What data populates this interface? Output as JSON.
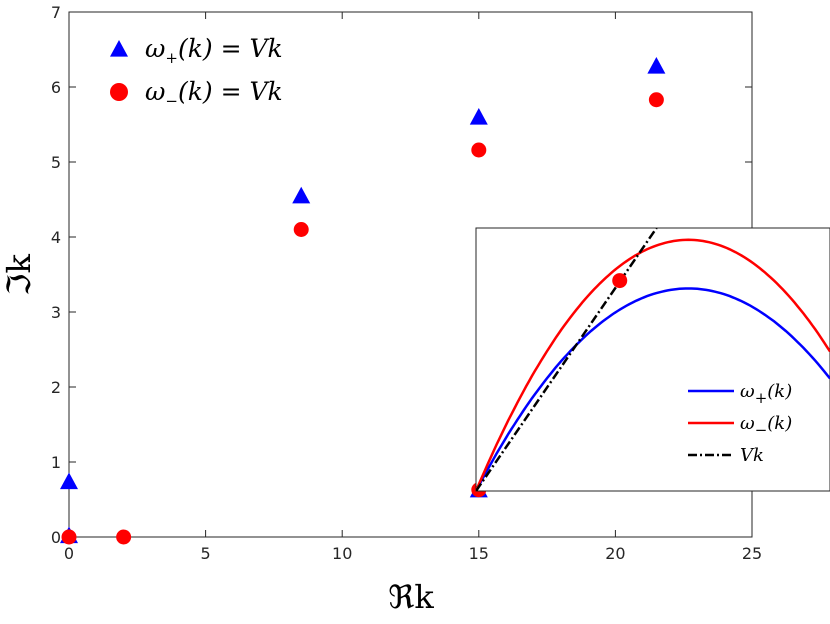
{
  "chart_data": {
    "type": "scatter",
    "xlabel": "ℜk",
    "ylabel": "ℑk",
    "xlim": [
      0,
      25
    ],
    "ylim": [
      0,
      7
    ],
    "xticks": [
      "0",
      "5",
      "10",
      "15",
      "20",
      "25"
    ],
    "yticks": [
      "0",
      "1",
      "2",
      "3",
      "4",
      "5",
      "6",
      "7"
    ],
    "legend_position": "top-left",
    "series": [
      {
        "name": "ω+(k) = Vk",
        "legend": {
          "sym": "ω",
          "sub": "+",
          "rest": "(k) = Vk"
        },
        "marker": "triangle",
        "color": "#0000ff",
        "points": [
          [
            0,
            0.74
          ],
          [
            0,
            0.02
          ],
          [
            8.5,
            4.55
          ],
          [
            15,
            5.6
          ],
          [
            21.5,
            6.28
          ],
          [
            15,
            0.63
          ]
        ]
      },
      {
        "name": "ω−(k) = Vk",
        "legend": {
          "sym": "ω",
          "sub": "−",
          "rest": "(k) = Vk"
        },
        "marker": "circle",
        "color": "#ff0000",
        "points": [
          [
            0,
            0.0
          ],
          [
            2,
            0.0
          ],
          [
            8.5,
            4.1
          ],
          [
            15,
            5.16
          ],
          [
            21.5,
            5.83
          ],
          [
            15,
            0.63
          ]
        ]
      }
    ],
    "inset": {
      "type": "line",
      "legend_position": "bottom-right",
      "series": [
        {
          "name": "ω+(k)",
          "legend": {
            "sym": "ω",
            "sub": "+",
            "rest": "(k)"
          },
          "color": "#0000ff",
          "style": "solid"
        },
        {
          "name": "ω−(k)",
          "legend": {
            "sym": "ω",
            "sub": "−",
            "rest": "(k)"
          },
          "color": "#ff0000",
          "style": "solid"
        },
        {
          "name": "Vk",
          "legend": {
            "sym": "",
            "sub": "",
            "rest": "Vk"
          },
          "color": "#000000",
          "style": "dashdot"
        }
      ]
    }
  }
}
